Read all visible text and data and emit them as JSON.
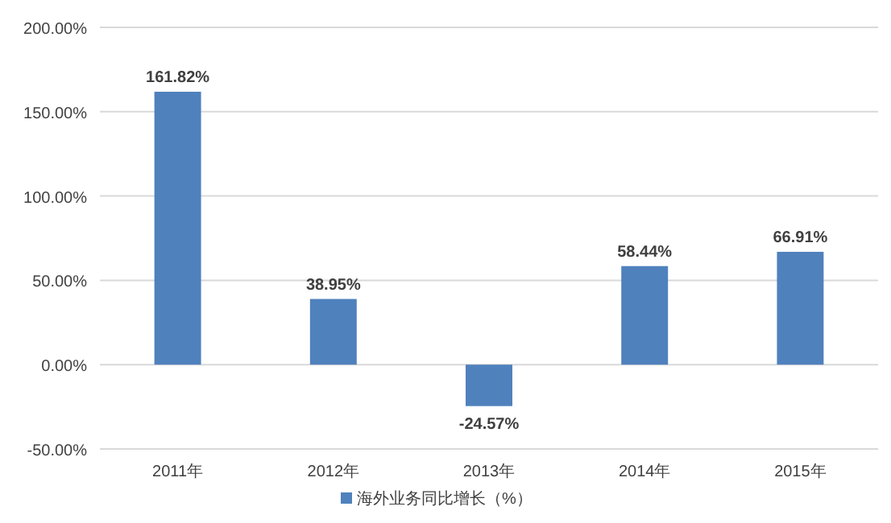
{
  "chart_data": {
    "type": "bar",
    "categories": [
      "2011年",
      "2012年",
      "2013年",
      "2014年",
      "2015年"
    ],
    "series": [
      {
        "name": "海外业务同比增长（%）",
        "color": "#4f81bd",
        "values": [
          161.82,
          38.95,
          -24.57,
          58.44,
          66.91
        ],
        "value_labels": [
          "161.82%",
          "38.95%",
          "-24.57%",
          "58.44%",
          "66.91%"
        ]
      }
    ],
    "ylim": [
      -50,
      200
    ],
    "yticks": [
      {
        "value": -50,
        "label": "-50.00%"
      },
      {
        "value": 0,
        "label": "0.00%"
      },
      {
        "value": 50,
        "label": "50.00%"
      },
      {
        "value": 100,
        "label": "100.00%"
      },
      {
        "value": 150,
        "label": "150.00%"
      },
      {
        "value": 200,
        "label": "200.00%"
      }
    ],
    "grid": "y",
    "legend": "bottom"
  }
}
